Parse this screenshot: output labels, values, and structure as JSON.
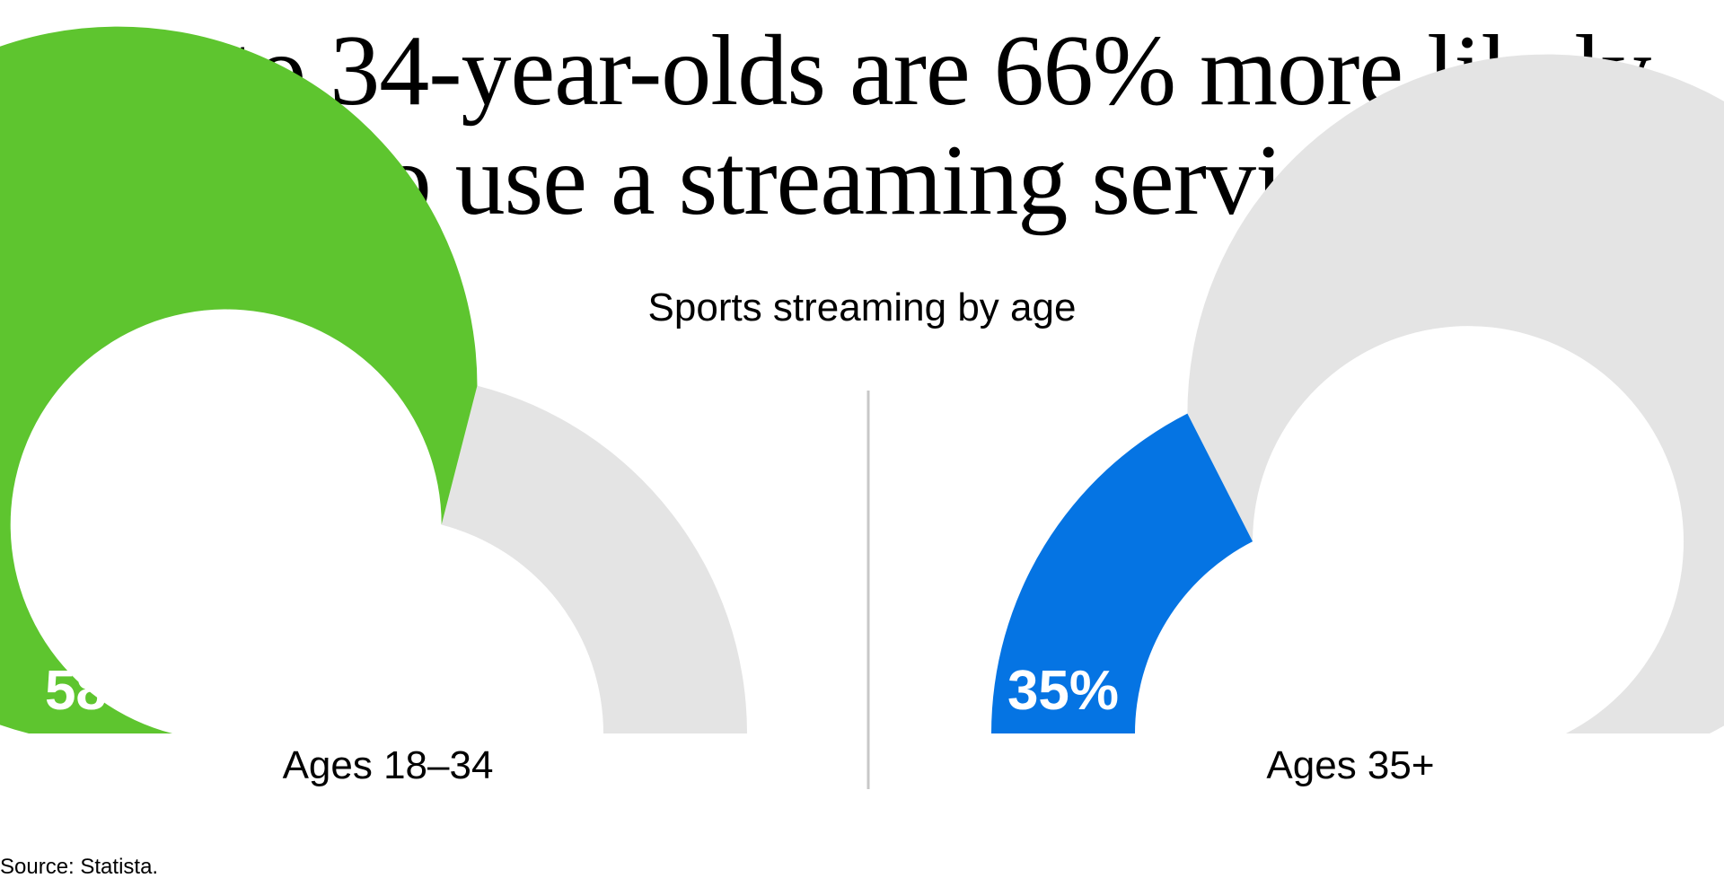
{
  "title_lines": [
    "18- to 34-year-olds are 66% more likely",
    "to use a streaming service"
  ],
  "source": "Source: Statista.",
  "chart_data": {
    "type": "gauge",
    "title": "18- to 34-year-olds are 66% more likely to use a streaming service",
    "subtitle": "Sports streaming by age",
    "range": [
      0,
      100
    ],
    "track_color": "#e4e4e4",
    "series": [
      {
        "category": "Ages 18–34",
        "value": 58,
        "label": "58%",
        "color": "#5ec52f"
      },
      {
        "category": "Ages 35+",
        "value": 35,
        "label": "35%",
        "color": "#0574e3"
      }
    ]
  }
}
